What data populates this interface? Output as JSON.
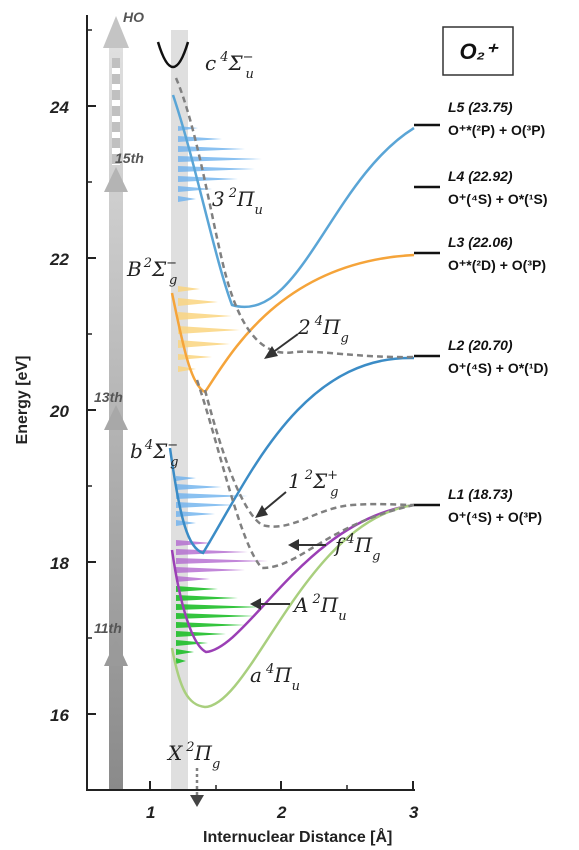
{
  "title": "O₂⁺",
  "axes": {
    "ylabel": "Energy [eV]",
    "xlabel": "Internuclear Distance [Å]",
    "yticks": [
      "16",
      "18",
      "20",
      "22",
      "24"
    ],
    "xticks": [
      "1",
      "2",
      "3"
    ]
  },
  "harmonics": [
    {
      "label": "HO"
    },
    {
      "label": "15th"
    },
    {
      "label": "13th"
    },
    {
      "label": "11th"
    }
  ],
  "states": [
    {
      "id": "c4Su",
      "base": "c",
      "sup": "4",
      "sym": "Σ",
      "symsup": "−",
      "sub": "u"
    },
    {
      "id": "32Pu",
      "base": "3",
      "sup": "2",
      "sym": "Π",
      "symsup": "",
      "sub": "u"
    },
    {
      "id": "B2Sg",
      "base": "B",
      "sup": "2",
      "sym": "Σ",
      "symsup": "−",
      "sub": "g"
    },
    {
      "id": "24Pg",
      "base": "2",
      "sup": "4",
      "sym": "Π",
      "symsup": "",
      "sub": "g"
    },
    {
      "id": "b4Sg",
      "base": "b",
      "sup": "4",
      "sym": "Σ",
      "symsup": "−",
      "sub": "g"
    },
    {
      "id": "12Sg",
      "base": "1",
      "sup": "2",
      "sym": "Σ",
      "symsup": "+",
      "sub": "g"
    },
    {
      "id": "f4Pg",
      "base": "f",
      "sup": "4",
      "sym": "Π",
      "symsup": "",
      "sub": "g"
    },
    {
      "id": "A2Pu",
      "base": "A",
      "sup": "2",
      "sym": "Π",
      "symsup": "",
      "sub": "u"
    },
    {
      "id": "a4Pu",
      "base": "a",
      "sup": "4",
      "sym": "Π",
      "symsup": "",
      "sub": "u"
    },
    {
      "id": "X2Pg",
      "base": "X",
      "sup": "2",
      "sym": "Π",
      "symsup": "",
      "sub": "g"
    }
  ],
  "limits": [
    {
      "name": "L5 (23.75)",
      "products": "O⁺*(²P) + O(³P)",
      "energy": 23.75
    },
    {
      "name": "L4 (22.92)",
      "products": "O⁺(⁴S) + O*(¹S)",
      "energy": 22.92
    },
    {
      "name": "L3 (22.06)",
      "products": "O⁺*(²D) + O(³P)",
      "energy": 22.06
    },
    {
      "name": "L2 (20.70)",
      "products": "O⁺(⁴S) + O*(¹D)",
      "energy": 20.7
    },
    {
      "name": "L1 (18.73)",
      "products": "O⁺(⁴S) + O(³P)",
      "energy": 18.73
    }
  ],
  "colors": {
    "blue": "#5aa5d6",
    "blue_dark": "#3b8cc6",
    "orange": "#f5a43a",
    "purple": "#9b3fb5",
    "green_light": "#a9cf7e",
    "green_fill": "#1fbf2a",
    "purple_fill": "#b36ad0",
    "blue_fill": "#6eb2ee",
    "orange_fill": "#fbd580",
    "dashed": "#808080",
    "arrow_gray": "#bdbdbd"
  }
}
